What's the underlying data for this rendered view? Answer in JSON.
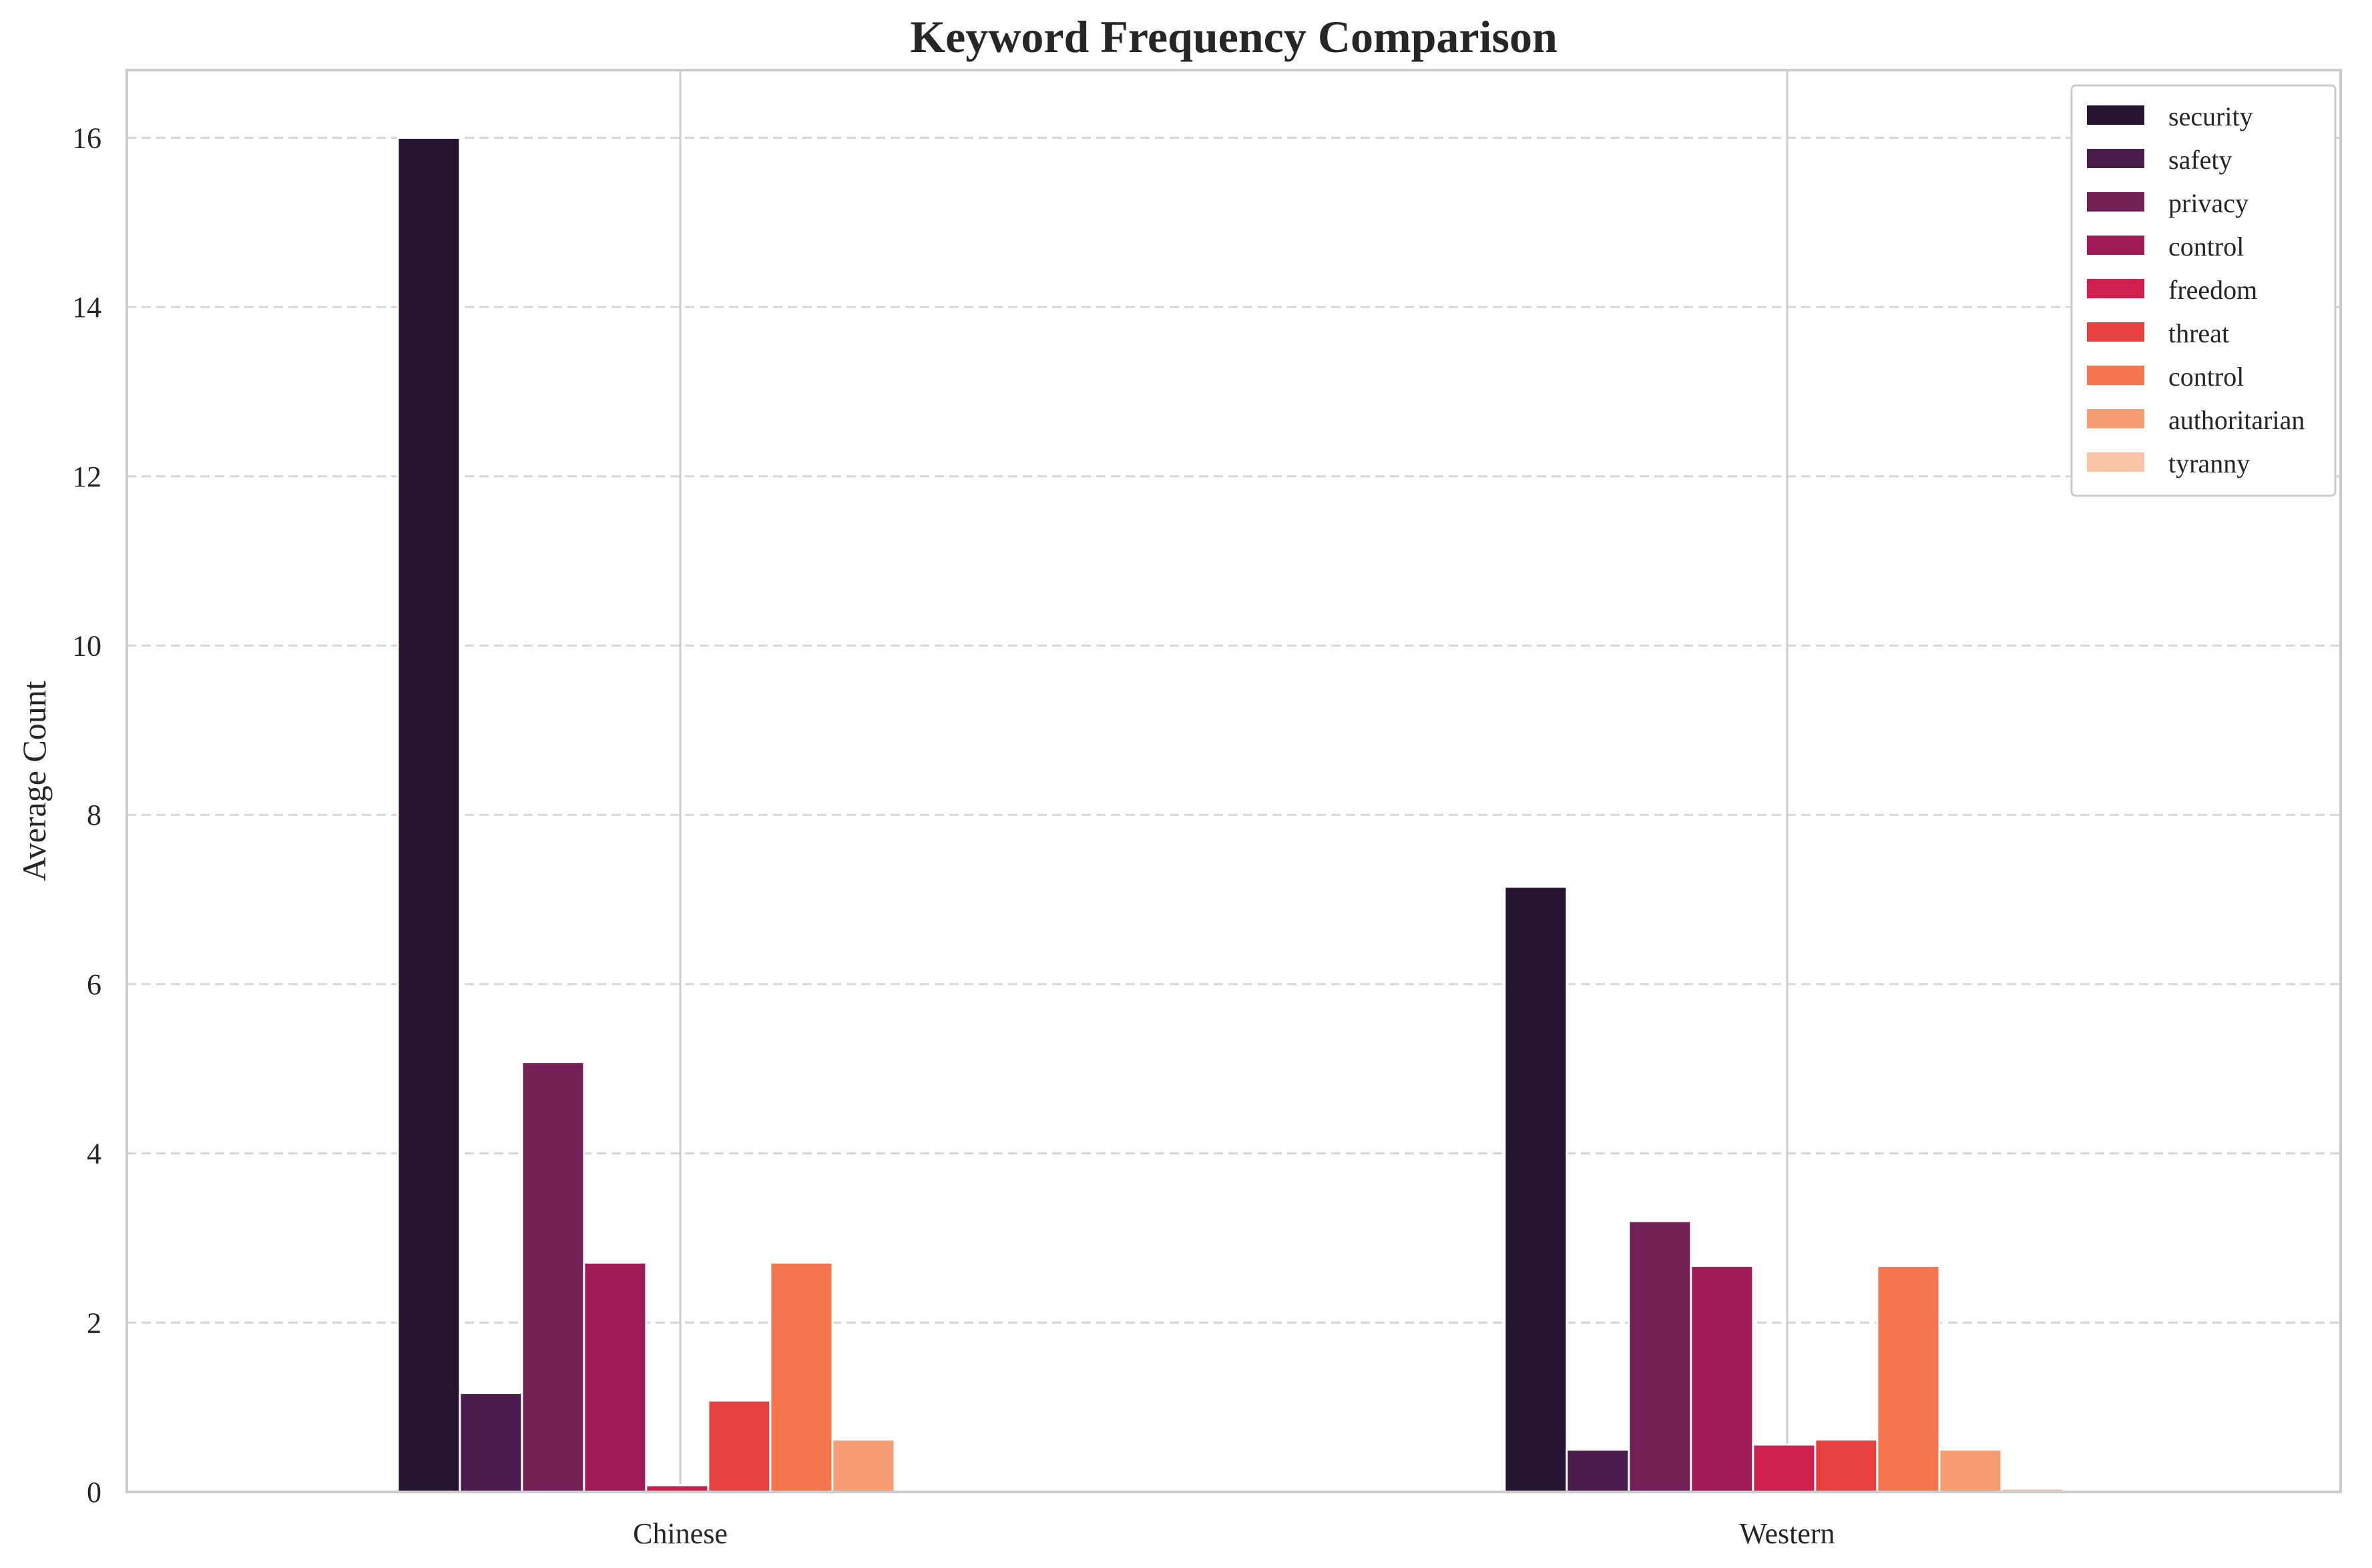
{
  "chart_data": {
    "type": "bar",
    "title": "Keyword Frequency Comparison",
    "xlabel": "",
    "ylabel": "Average Count",
    "categories": [
      "Chinese",
      "Western"
    ],
    "ylim": [
      0,
      16.8
    ],
    "yticks": [
      0,
      2,
      4,
      6,
      8,
      10,
      12,
      14,
      16
    ],
    "grid": "horizontal dashed",
    "legend_position": "top-right",
    "series": [
      {
        "name": "security",
        "color": "#251432",
        "values": [
          16.0,
          7.15
        ]
      },
      {
        "name": "safety",
        "color": "#4a1c4d",
        "values": [
          1.17,
          0.5
        ]
      },
      {
        "name": "privacy",
        "color": "#721f56",
        "values": [
          5.08,
          3.2
        ]
      },
      {
        "name": "control",
        "color": "#a01a58",
        "values": [
          2.71,
          2.67
        ]
      },
      {
        "name": "freedom",
        "color": "#ce1f4f",
        "values": [
          0.08,
          0.56
        ]
      },
      {
        "name": "threat",
        "color": "#e8403e",
        "values": [
          1.08,
          0.62
        ]
      },
      {
        "name": "control",
        "color": "#f3764f",
        "values": [
          2.71,
          2.67
        ]
      },
      {
        "name": "authoritarian",
        "color": "#f69c73",
        "values": [
          0.62,
          0.5
        ]
      },
      {
        "name": "tyranny",
        "color": "#f8c3a6",
        "values": [
          0.0,
          0.04
        ]
      }
    ]
  }
}
